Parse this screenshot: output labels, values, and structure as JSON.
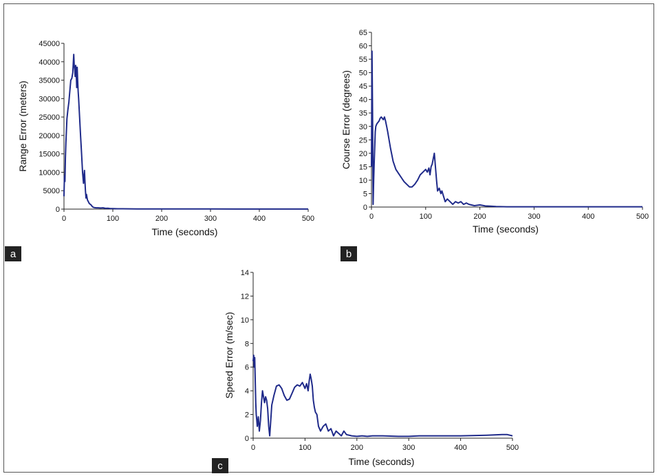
{
  "chart_data": [
    {
      "panel": "a",
      "type": "line",
      "xlabel": "Time (seconds)",
      "ylabel": "Range Error (meters)",
      "xlim": [
        0,
        500
      ],
      "ylim": [
        0,
        45000
      ],
      "xticks": [
        0,
        100,
        200,
        300,
        400,
        500
      ],
      "yticks": [
        0,
        5000,
        10000,
        15000,
        20000,
        25000,
        30000,
        35000,
        40000,
        45000
      ],
      "color": "#1f2a8a",
      "series": [
        {
          "x": [
            0,
            1,
            2,
            3,
            4,
            5,
            6,
            8,
            10,
            12,
            14,
            16,
            18,
            20,
            21,
            22,
            23,
            24,
            25,
            26,
            27,
            28,
            29,
            30,
            32,
            34,
            36,
            38,
            40,
            41,
            42,
            43,
            44,
            45,
            46,
            48,
            50,
            52,
            55,
            58,
            60,
            63,
            66,
            70,
            75,
            80,
            85,
            90,
            95,
            100,
            110,
            120,
            150,
            200,
            250,
            300,
            350,
            400,
            450,
            500
          ],
          "y": [
            3500,
            9000,
            7500,
            14000,
            18000,
            21000,
            24500,
            27000,
            29000,
            32000,
            35000,
            35500,
            37000,
            42000,
            39000,
            38000,
            36000,
            39000,
            37000,
            33000,
            38500,
            35000,
            32000,
            30000,
            25000,
            20000,
            15000,
            10000,
            7000,
            9000,
            10500,
            7500,
            5000,
            3000,
            4000,
            2500,
            2000,
            1500,
            1200,
            700,
            500,
            400,
            350,
            350,
            300,
            350,
            200,
            250,
            150,
            150,
            100,
            100,
            50,
            50,
            30,
            30,
            20,
            20,
            20,
            20
          ]
        }
      ]
    },
    {
      "panel": "b",
      "type": "line",
      "xlabel": "Time (seconds)",
      "ylabel": "Course Error (degrees)",
      "xlim": [
        0,
        500
      ],
      "ylim": [
        0,
        65
      ],
      "xticks": [
        0,
        100,
        200,
        300,
        400,
        500
      ],
      "yticks": [
        0,
        5,
        10,
        15,
        20,
        25,
        30,
        35,
        40,
        45,
        50,
        55,
        60,
        65
      ],
      "color": "#1f2a8a",
      "series": [
        {
          "x": [
            0,
            1,
            2,
            3,
            4,
            5,
            6,
            7,
            8,
            10,
            12,
            14,
            16,
            18,
            20,
            22,
            24,
            26,
            28,
            30,
            35,
            40,
            45,
            50,
            55,
            60,
            65,
            70,
            75,
            80,
            85,
            90,
            95,
            100,
            103,
            106,
            108,
            110,
            112,
            114,
            116,
            118,
            120,
            122,
            125,
            128,
            130,
            133,
            136,
            140,
            145,
            150,
            155,
            160,
            165,
            170,
            175,
            180,
            190,
            200,
            210,
            220,
            230,
            250,
            300,
            350,
            400,
            450,
            500
          ],
          "y": [
            15,
            58,
            35,
            1,
            10,
            16,
            22,
            28,
            30,
            31,
            31.5,
            32,
            33,
            33.5,
            33,
            32.5,
            33.5,
            32,
            30,
            28,
            22,
            17,
            14,
            12.5,
            11,
            9.5,
            8.5,
            7.5,
            7.5,
            8.5,
            10,
            12,
            13,
            14,
            13,
            14.5,
            12,
            15,
            16,
            18,
            20,
            15,
            10,
            6,
            7,
            5,
            6,
            4,
            2,
            3,
            2,
            1,
            2,
            1.5,
            2,
            1,
            1.5,
            1,
            0.5,
            0.8,
            0.4,
            0.3,
            0.2,
            0.1,
            0.1,
            0.1,
            0.1,
            0.1,
            0.1
          ]
        }
      ]
    },
    {
      "panel": "c",
      "type": "line",
      "xlabel": "Time (seconds)",
      "ylabel": "Speed Error (m/sec)",
      "xlim": [
        0,
        500
      ],
      "ylim": [
        0,
        14
      ],
      "xticks": [
        0,
        100,
        200,
        300,
        400,
        500
      ],
      "yticks": [
        0,
        2,
        4,
        6,
        8,
        10,
        12,
        14
      ],
      "color": "#1f2a8a",
      "series": [
        {
          "x": [
            0,
            1,
            2,
            3,
            4,
            5,
            6,
            7,
            8,
            10,
            12,
            14,
            16,
            18,
            20,
            22,
            24,
            26,
            28,
            30,
            32,
            34,
            36,
            40,
            45,
            50,
            55,
            60,
            65,
            70,
            75,
            80,
            85,
            90,
            95,
            100,
            103,
            106,
            108,
            110,
            112,
            114,
            116,
            118,
            120,
            123,
            126,
            130,
            135,
            140,
            145,
            150,
            155,
            160,
            165,
            170,
            175,
            180,
            190,
            200,
            210,
            220,
            230,
            250,
            280,
            300,
            320,
            350,
            400,
            450,
            480,
            490,
            500
          ],
          "y": [
            6.5,
            7,
            6,
            6.8,
            5,
            3,
            2,
            1.5,
            1,
            1.8,
            0.6,
            1.5,
            3,
            4,
            3.5,
            3,
            3.5,
            3.2,
            2.5,
            1,
            0.2,
            1.5,
            2.8,
            3.6,
            4.4,
            4.5,
            4.2,
            3.6,
            3.2,
            3.3,
            3.8,
            4.3,
            4.5,
            4.4,
            4.7,
            4.2,
            4.6,
            4.0,
            4.8,
            5.4,
            5.0,
            4.4,
            3.2,
            2.6,
            2.2,
            2.0,
            1.0,
            0.6,
            1.0,
            1.2,
            0.6,
            0.8,
            0.2,
            0.6,
            0.4,
            0.2,
            0.6,
            0.3,
            0.2,
            0.15,
            0.2,
            0.15,
            0.2,
            0.2,
            0.15,
            0.15,
            0.2,
            0.2,
            0.2,
            0.25,
            0.3,
            0.3,
            0.2
          ]
        }
      ]
    }
  ]
}
